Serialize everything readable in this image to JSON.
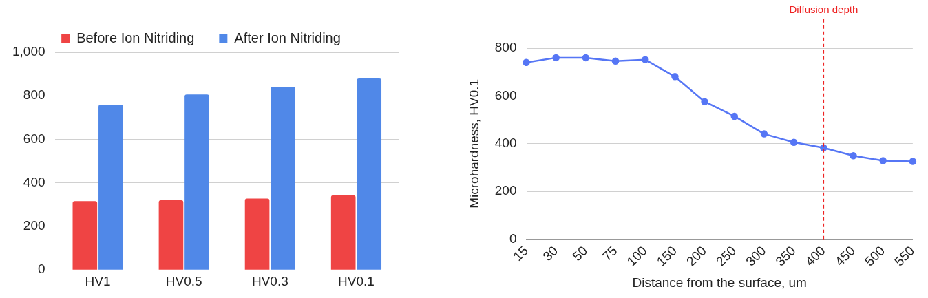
{
  "chart_data": [
    {
      "type": "bar",
      "categories": [
        "HV1",
        "HV0.5",
        "HV0.3",
        "HV0.1"
      ],
      "series": [
        {
          "name": "Before Ion Nitriding",
          "color": "#ef4444",
          "values": [
            316,
            320,
            328,
            343
          ]
        },
        {
          "name": "After Ion Nitriding",
          "color": "#5088e8",
          "values": [
            760,
            806,
            841,
            880
          ]
        }
      ],
      "ylim": [
        0,
        1000
      ],
      "yticks": [
        0,
        {
          "value": 200,
          "label": "200"
        },
        {
          "value": 400,
          "label": "400"
        },
        {
          "value": 600,
          "label": "600"
        },
        {
          "value": 800,
          "label": "800"
        },
        {
          "value": 1000,
          "label": "1,000"
        }
      ],
      "grid": "y",
      "legend": "top"
    },
    {
      "type": "line",
      "categories": [
        "15",
        "30",
        "50",
        "75",
        "100",
        "150",
        "200",
        "250",
        "300",
        "350",
        "400",
        "450",
        "500",
        "550"
      ],
      "series": [
        {
          "color": "#5676f5",
          "values": [
            740,
            760,
            760,
            746,
            752,
            681,
            576,
            515,
            441,
            406,
            383,
            350,
            329,
            326
          ]
        }
      ],
      "xlabel": "Distance from the surface, um",
      "ylabel": "Microhardness, HV0.1",
      "ylim": [
        0,
        800
      ],
      "yticks": [
        0,
        200,
        400,
        600,
        800
      ],
      "grid": "y",
      "marker": "circle",
      "line_style": "solid",
      "ref_lines": [
        {
          "axis": "x",
          "value": "400",
          "label": "Diffusion depth",
          "color": "#ee2222",
          "line_style": "dashed"
        }
      ]
    }
  ]
}
